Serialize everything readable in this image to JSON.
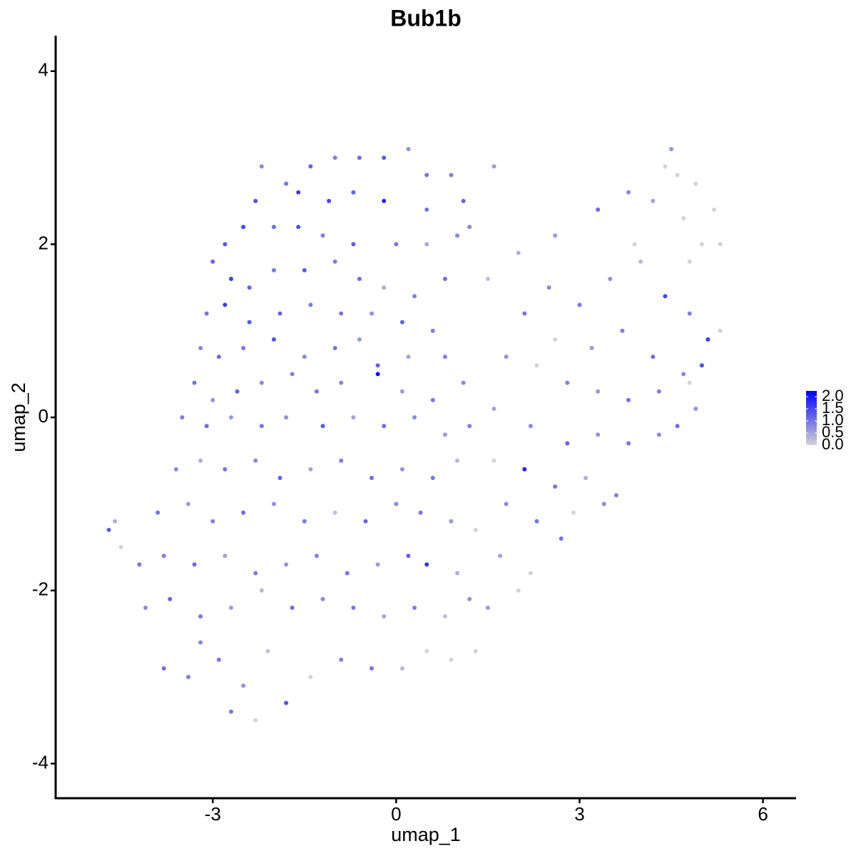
{
  "chart_data": {
    "type": "scatter",
    "title": "Bub1b",
    "x_label": "umap_1",
    "y_label": "umap_2",
    "xlim": [
      -5.57,
      6.53
    ],
    "ylim": [
      -4.4,
      4.41
    ],
    "xticks": [
      -3,
      0,
      3,
      6
    ],
    "yticks": [
      -4,
      -2,
      0,
      2,
      4
    ],
    "low_color": "#d3d3d3",
    "high_color": "#0000ff",
    "color_lim": [
      0,
      2.24
    ],
    "color_ticks": [
      {
        "value": 0,
        "label": "0.0"
      },
      0.5,
      {
        "value": 1,
        "label": "1.0"
      },
      1.5,
      {
        "value": 2,
        "label": "2.0"
      }
    ],
    "x": [
      -2.2,
      -1.8,
      -1.4,
      -1.0,
      -0.6,
      -0.2,
      0.2,
      0.5,
      0.9,
      1.1,
      1.6,
      -2.3,
      -1.6,
      -1.1,
      -0.7,
      -0.2,
      0.5,
      1.2,
      -2.8,
      -2.5,
      -2.0,
      -1.6,
      -1.2,
      -0.7,
      0.0,
      0.5,
      1.0,
      -3.0,
      -2.7,
      -2.4,
      -2.0,
      -1.5,
      -1.0,
      -0.6,
      -0.2,
      0.3,
      0.8,
      -3.1,
      -2.8,
      -2.4,
      -1.9,
      -1.4,
      -0.9,
      -0.4,
      0.1,
      0.6,
      -3.2,
      -2.9,
      -2.5,
      -2.0,
      -1.5,
      -1.0,
      -0.6,
      -0.3,
      0.2,
      0.8,
      -3.3,
      -3.0,
      -2.6,
      -2.2,
      -1.7,
      -1.3,
      -0.9,
      -0.3,
      0.1,
      0.6,
      1.1,
      -3.5,
      -3.1,
      -2.7,
      -2.2,
      -1.8,
      -1.2,
      -0.7,
      -0.2,
      0.3,
      0.8,
      1.2,
      -3.6,
      -3.2,
      -2.8,
      -2.3,
      -1.9,
      -1.4,
      -0.9,
      -0.4,
      0.1,
      0.6,
      1.0,
      -3.9,
      -3.4,
      -3.0,
      -2.5,
      -2.0,
      -1.5,
      -1.0,
      -0.5,
      0.0,
      0.4,
      0.9,
      1.3,
      -4.7,
      -4.6,
      -4.5,
      -4.2,
      -3.8,
      -3.3,
      -2.8,
      -2.3,
      -1.8,
      -1.3,
      -0.8,
      -0.3,
      0.2,
      0.5,
      1.0,
      -4.1,
      -3.7,
      -3.2,
      -2.7,
      -2.2,
      -1.7,
      -1.2,
      -0.7,
      -0.2,
      0.3,
      0.8,
      1.2,
      -3.8,
      -3.4,
      -2.9,
      -2.5,
      -2.1,
      -1.8,
      -1.4,
      -0.9,
      -0.4,
      0.1,
      0.5,
      0.9,
      -2.7,
      -2.3,
      -3.2,
      1.5,
      2.0,
      2.5,
      3.0,
      3.5,
      4.0,
      4.4,
      4.8,
      5.1,
      5.3,
      2.6,
      3.3,
      3.8,
      4.2,
      4.5,
      4.6,
      4.9,
      5.2,
      4.7,
      5.0,
      5.3,
      4.4,
      4.8,
      3.9,
      2.1,
      2.6,
      3.2,
      3.7,
      4.2,
      4.7,
      5.0,
      1.8,
      2.3,
      2.8,
      3.3,
      3.8,
      4.3,
      4.8,
      4.9,
      1.6,
      2.2,
      2.8,
      3.3,
      3.8,
      4.3,
      4.6,
      1.6,
      2.1,
      2.6,
      3.1,
      3.6,
      1.8,
      2.3,
      2.9,
      3.4,
      1.7,
      2.2,
      2.7,
      1.5,
      2.0,
      1.3
    ],
    "y": [
      2.9,
      2.7,
      2.9,
      3.0,
      3.0,
      3.0,
      3.1,
      2.8,
      2.8,
      2.5,
      2.9,
      2.5,
      2.6,
      2.5,
      2.6,
      2.5,
      2.4,
      2.2,
      2.0,
      2.2,
      2.2,
      2.2,
      2.1,
      2.0,
      2.0,
      2.0,
      2.1,
      1.8,
      1.6,
      1.5,
      1.7,
      1.7,
      1.8,
      1.6,
      1.5,
      1.4,
      1.6,
      1.2,
      1.3,
      1.1,
      1.2,
      1.3,
      1.2,
      1.2,
      1.1,
      1.0,
      0.8,
      0.7,
      0.8,
      0.9,
      0.7,
      0.8,
      0.9,
      0.6,
      0.7,
      0.7,
      0.4,
      0.2,
      0.3,
      0.4,
      0.5,
      0.3,
      0.4,
      0.5,
      0.3,
      0.2,
      0.4,
      0.0,
      -0.1,
      0.0,
      -0.1,
      0.0,
      -0.1,
      0.0,
      -0.1,
      0.0,
      -0.2,
      -0.1,
      -0.6,
      -0.5,
      -0.6,
      -0.5,
      -0.7,
      -0.6,
      -0.5,
      -0.7,
      -0.6,
      -0.7,
      -0.5,
      -1.1,
      -1.0,
      -1.2,
      -1.1,
      -1.0,
      -1.2,
      -1.1,
      -1.2,
      -1.0,
      -1.1,
      -1.2,
      -1.3,
      -1.3,
      -1.2,
      -1.5,
      -1.7,
      -1.6,
      -1.7,
      -1.6,
      -1.8,
      -1.7,
      -1.6,
      -1.8,
      -1.7,
      -1.6,
      -1.7,
      -1.8,
      -2.2,
      -2.1,
      -2.3,
      -2.2,
      -2.0,
      -2.2,
      -2.1,
      -2.2,
      -2.3,
      -2.2,
      -2.3,
      -2.1,
      -2.9,
      -3.0,
      -2.8,
      -3.1,
      -2.7,
      -3.3,
      -3.0,
      -2.8,
      -2.9,
      -2.9,
      -2.7,
      -2.8,
      -3.4,
      -3.5,
      -2.6,
      1.6,
      1.9,
      1.5,
      1.3,
      1.6,
      1.8,
      1.4,
      1.2,
      0.9,
      1.0,
      2.1,
      2.4,
      2.6,
      2.5,
      3.1,
      2.8,
      2.7,
      2.4,
      2.3,
      2.0,
      2.0,
      2.9,
      1.8,
      2.0,
      1.2,
      0.9,
      0.8,
      1.0,
      0.7,
      0.5,
      0.6,
      0.7,
      0.6,
      0.4,
      0.3,
      0.2,
      0.3,
      0.4,
      0.1,
      0.1,
      -0.1,
      -0.3,
      -0.2,
      -0.3,
      -0.2,
      -0.1,
      -0.5,
      -0.6,
      -0.8,
      -0.7,
      -0.9,
      -1.0,
      -1.2,
      -1.1,
      -1.0,
      -1.6,
      -1.8,
      -1.4,
      -2.2,
      -2.0,
      -2.7
    ],
    "expression": [
      0.8,
      1.0,
      1.2,
      0.9,
      1.1,
      1.3,
      0.7,
      1.0,
      0.9,
      1.2,
      0.6,
      1.4,
      1.6,
      1.5,
      1.2,
      1.9,
      1.0,
      0.8,
      1.3,
      1.5,
      1.1,
      1.4,
      0.9,
      1.3,
      1.0,
      0.5,
      0.8,
      1.2,
      1.6,
      1.2,
      1.0,
      1.3,
      0.9,
      1.1,
      0.4,
      0.9,
      1.1,
      1.0,
      1.6,
      1.3,
      1.2,
      0.9,
      1.0,
      0.7,
      1.2,
      0.9,
      0.8,
      1.1,
      1.0,
      1.4,
      0.8,
      1.0,
      0.6,
      1.2,
      0.5,
      0.9,
      1.0,
      0.7,
      1.2,
      0.8,
      0.9,
      1.0,
      0.8,
      2.1,
      0.6,
      1.0,
      0.8,
      0.9,
      1.1,
      0.6,
      1.0,
      0.7,
      1.3,
      0.5,
      1.1,
      0.8,
      0.6,
      0.9,
      0.8,
      0.4,
      1.0,
      0.8,
      1.2,
      0.5,
      0.9,
      1.1,
      0.7,
      1.0,
      0.3,
      1.0,
      0.6,
      0.9,
      1.1,
      0.7,
      1.0,
      0.2,
      1.2,
      0.8,
      1.0,
      0.6,
      0.0,
      1.3,
      0.4,
      0.0,
      1.0,
      0.9,
      1.1,
      0.5,
      1.0,
      0.7,
      0.9,
      1.0,
      0.6,
      1.2,
      1.7,
      0.4,
      0.8,
      1.2,
      1.0,
      0.6,
      0.3,
      1.1,
      0.8,
      1.0,
      0.5,
      0.9,
      0.2,
      0.7,
      1.1,
      0.9,
      1.0,
      0.7,
      0.2,
      1.4,
      0.0,
      0.9,
      1.0,
      0.3,
      0.0,
      0.0,
      1.0,
      0.0,
      0.8,
      0.2,
      0.4,
      0.8,
      1.0,
      0.7,
      0.3,
      1.5,
      0.9,
      1.6,
      0.0,
      0.6,
      1.1,
      0.8,
      0.5,
      0.7,
      0.0,
      0.0,
      0.0,
      0.0,
      0.0,
      0.0,
      0.0,
      0.0,
      0.0,
      1.0,
      0.0,
      0.6,
      0.9,
      1.1,
      0.8,
      1.4,
      0.7,
      0.0,
      0.9,
      0.6,
      1.0,
      0.9,
      0.0,
      0.7,
      0.5,
      0.8,
      1.2,
      0.7,
      1.0,
      0.8,
      1.1,
      0.0,
      1.9,
      1.0,
      0.4,
      0.9,
      0.8,
      1.0,
      0.0,
      0.8,
      0.5,
      0.0,
      1.0,
      0.6,
      0.0,
      0.0
    ]
  }
}
